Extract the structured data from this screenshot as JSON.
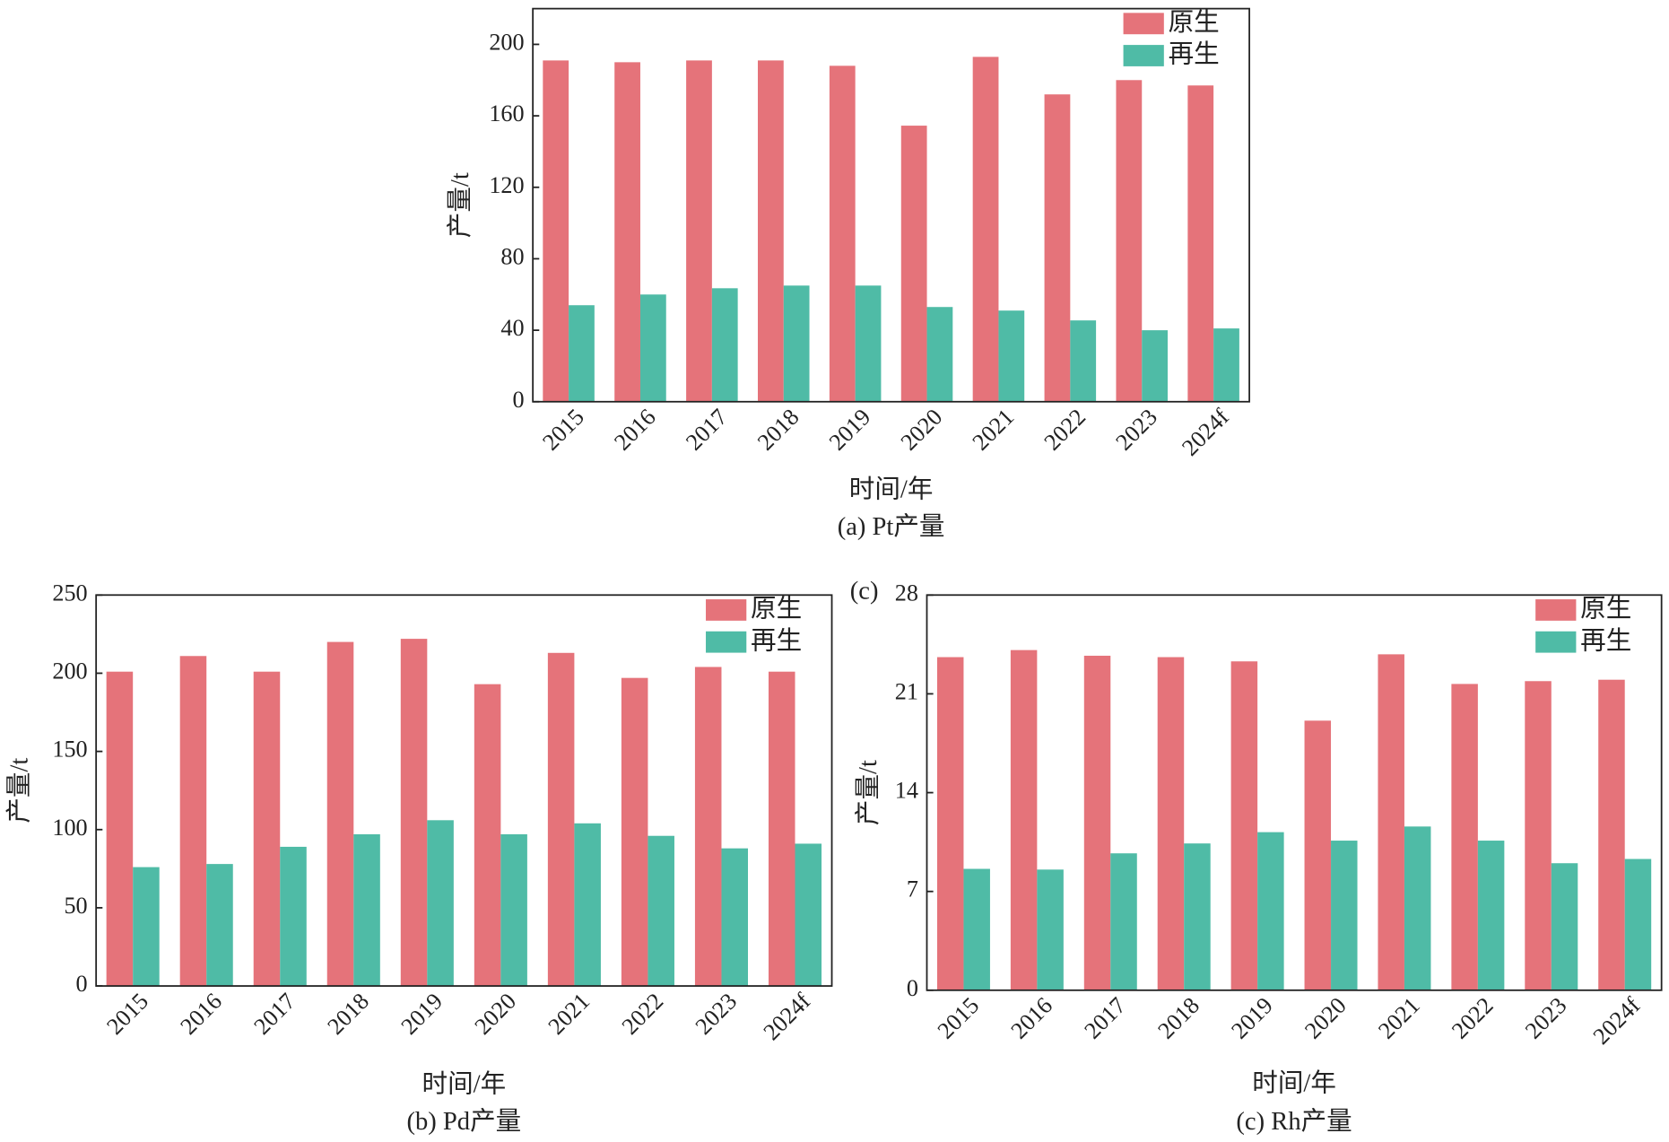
{
  "chart_data": [
    {
      "type": "bar",
      "caption": "(a) Pt产量",
      "xlabel": "时间/年",
      "ylabel": "产量/t",
      "categories": [
        "2015",
        "2016",
        "2017",
        "2018",
        "2019",
        "2020",
        "2021",
        "2022",
        "2023",
        "2024f"
      ],
      "series": [
        {
          "name": "原生",
          "color": "#e5737a",
          "values": [
            191,
            190,
            191,
            191,
            188,
            154.5,
            193,
            172,
            180,
            177
          ]
        },
        {
          "name": "再生",
          "color": "#4fbba6",
          "values": [
            54,
            60,
            63.5,
            65,
            65,
            53,
            51,
            45.5,
            40,
            41
          ]
        }
      ],
      "ylim": [
        0,
        220
      ],
      "yticks": [
        0,
        40,
        80,
        120,
        160,
        200
      ],
      "legend": "upper right"
    },
    {
      "type": "bar",
      "caption": "(b) Pd产量",
      "xlabel": "时间/年",
      "ylabel": "产量/t",
      "categories": [
        "2015",
        "2016",
        "2017",
        "2018",
        "2019",
        "2020",
        "2021",
        "2022",
        "2023",
        "2024f"
      ],
      "series": [
        {
          "name": "原生",
          "color": "#e5737a",
          "values": [
            201,
            211,
            201,
            220,
            222,
            193,
            213,
            197,
            204,
            201
          ]
        },
        {
          "name": "再生",
          "color": "#4fbba6",
          "values": [
            76,
            78,
            89,
            97,
            106,
            97,
            104,
            96,
            88,
            91
          ]
        }
      ],
      "ylim": [
        0,
        250
      ],
      "yticks": [
        0,
        50,
        100,
        150,
        200,
        250
      ],
      "legend": "upper right"
    },
    {
      "type": "bar",
      "caption": "(c) Rh产量",
      "xlabel": "时间/年",
      "ylabel": "产量/t",
      "annotation": "(c)",
      "categories": [
        "2015",
        "2016",
        "2017",
        "2018",
        "2019",
        "2020",
        "2021",
        "2022",
        "2023",
        "2024f"
      ],
      "series": [
        {
          "name": "原生",
          "color": "#e5737a",
          "values": [
            23.6,
            24.1,
            23.7,
            23.6,
            23.3,
            19.1,
            23.8,
            21.7,
            21.9,
            22.0
          ]
        },
        {
          "name": "再生",
          "color": "#4fbba6",
          "values": [
            8.6,
            8.55,
            9.7,
            10.4,
            11.2,
            10.6,
            11.6,
            10.6,
            9.0,
            9.3
          ]
        }
      ],
      "ylim": [
        0,
        28
      ],
      "yticks": [
        0,
        7,
        14,
        21,
        28
      ],
      "legend": "upper right"
    }
  ]
}
